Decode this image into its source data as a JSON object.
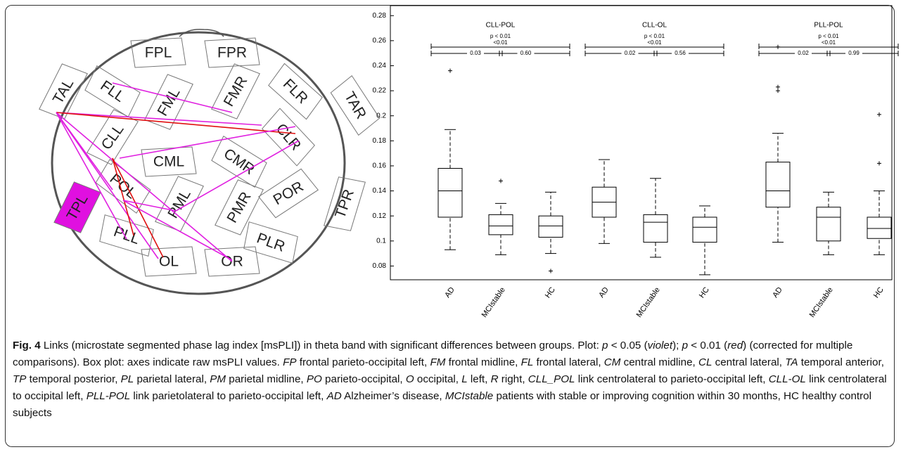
{
  "diagram": {
    "regions": [
      "FPL",
      "FPR",
      "FLL",
      "FML",
      "FMR",
      "FLR",
      "TAL",
      "TAR",
      "CLL",
      "CML",
      "CMR",
      "CLR",
      "POL",
      "PML",
      "PMR",
      "POR",
      "TPL",
      "TPR",
      "PLL",
      "PLR",
      "OL",
      "OR"
    ]
  },
  "chart_data": {
    "type": "box",
    "ylim": [
      0.069,
      0.288
    ],
    "yticks": [
      0.08,
      0.1,
      0.12,
      0.14,
      0.16,
      0.18,
      0.2,
      0.22,
      0.24,
      0.26,
      0.28
    ],
    "panels": [
      {
        "title": "CLL-POL",
        "p_overall": "p < 0.01",
        "p_ends": "<0.01",
        "p_left": "0.03",
        "p_right": "0.60",
        "categories": [
          "AD",
          "MCIstable",
          "HC"
        ],
        "boxes": [
          {
            "min": 0.093,
            "q1": 0.119,
            "median": 0.14,
            "q3": 0.158,
            "max": 0.189,
            "outliers": [
              0.236
            ]
          },
          {
            "min": 0.089,
            "q1": 0.105,
            "median": 0.112,
            "q3": 0.121,
            "max": 0.13,
            "outliers": [
              0.148
            ]
          },
          {
            "min": 0.09,
            "q1": 0.103,
            "median": 0.112,
            "q3": 0.12,
            "max": 0.139,
            "outliers": [
              0.076
            ]
          }
        ]
      },
      {
        "title": "CLL-OL",
        "p_overall": "p < 0.01",
        "p_ends": "<0.01",
        "p_left": "0.02",
        "p_right": "0.56",
        "categories": [
          "AD",
          "MCIstable",
          "HC"
        ],
        "boxes": [
          {
            "min": 0.098,
            "q1": 0.119,
            "median": 0.131,
            "q3": 0.143,
            "max": 0.165,
            "outliers": []
          },
          {
            "min": 0.087,
            "q1": 0.099,
            "median": 0.115,
            "q3": 0.121,
            "max": 0.15,
            "outliers": []
          },
          {
            "min": 0.073,
            "q1": 0.099,
            "median": 0.111,
            "q3": 0.119,
            "max": 0.128,
            "outliers": []
          }
        ]
      },
      {
        "title": "PLL-POL",
        "p_overall": "p < 0.01",
        "p_ends": "<0.01",
        "p_left": "0.02",
        "p_right": "0.99",
        "categories": [
          "AD",
          "MCIstable",
          "HC"
        ],
        "boxes": [
          {
            "min": 0.099,
            "q1": 0.127,
            "median": 0.14,
            "q3": 0.163,
            "max": 0.186,
            "outliers": [
              0.255,
              0.223,
              0.22
            ]
          },
          {
            "min": 0.089,
            "q1": 0.1,
            "median": 0.119,
            "q3": 0.127,
            "max": 0.139,
            "outliers": []
          },
          {
            "min": 0.089,
            "q1": 0.102,
            "median": 0.11,
            "q3": 0.119,
            "max": 0.14,
            "outliers": [
              0.201,
              0.162
            ]
          }
        ]
      }
    ]
  },
  "caption": {
    "label": "Fig. 4",
    "runs": [
      " Links (microstate segmented phase lag index [msPLI]) in theta band with significant differences between groups. Plot: ",
      {
        "text": "p",
        "italic": true
      },
      " < 0.05 (",
      {
        "text": "violet",
        "italic": true
      },
      "); ",
      {
        "text": "p",
        "italic": true
      },
      " < 0.01 (",
      {
        "text": "red",
        "italic": true
      },
      ") (corrected for multiple comparisons). Box plot: axes indicate raw msPLI values. ",
      {
        "text": "FP",
        "italic": true
      },
      " frontal parieto-occipital left, ",
      {
        "text": "FM",
        "italic": true
      },
      " frontal midline, ",
      {
        "text": "FL",
        "italic": true
      },
      " frontal lateral, ",
      {
        "text": "CM",
        "italic": true
      },
      " central midline, ",
      {
        "text": "CL",
        "italic": true
      },
      " central lateral, ",
      {
        "text": "TA",
        "italic": true
      },
      " temporal anterior, ",
      {
        "text": "TP",
        "italic": true
      },
      " temporal posterior, ",
      {
        "text": "PL",
        "italic": true
      },
      " parietal lateral, ",
      {
        "text": "PM",
        "italic": true
      },
      " parietal midline, ",
      {
        "text": "PO",
        "italic": true
      },
      " parieto-occipital, ",
      {
        "text": "O",
        "italic": true
      },
      " occipital, ",
      {
        "text": "L",
        "italic": true
      },
      " left, ",
      {
        "text": "R",
        "italic": true
      },
      " right, ",
      {
        "text": "CLL_POL",
        "italic": true
      },
      " link centrolateral to parieto-occipital left, ",
      {
        "text": "CLL-OL",
        "italic": true
      },
      " link centrolateral to occipital left, ",
      {
        "text": "PLL-POL",
        "italic": true
      },
      " link parietolateral to parieto-occipital left, ",
      {
        "text": "AD",
        "italic": true
      },
      " Alzheimer’s disease, ",
      {
        "text": "MCIstable",
        "italic": true
      },
      " patients with stable or improving cognition within 30 months, HC healthy control subjects"
    ]
  }
}
